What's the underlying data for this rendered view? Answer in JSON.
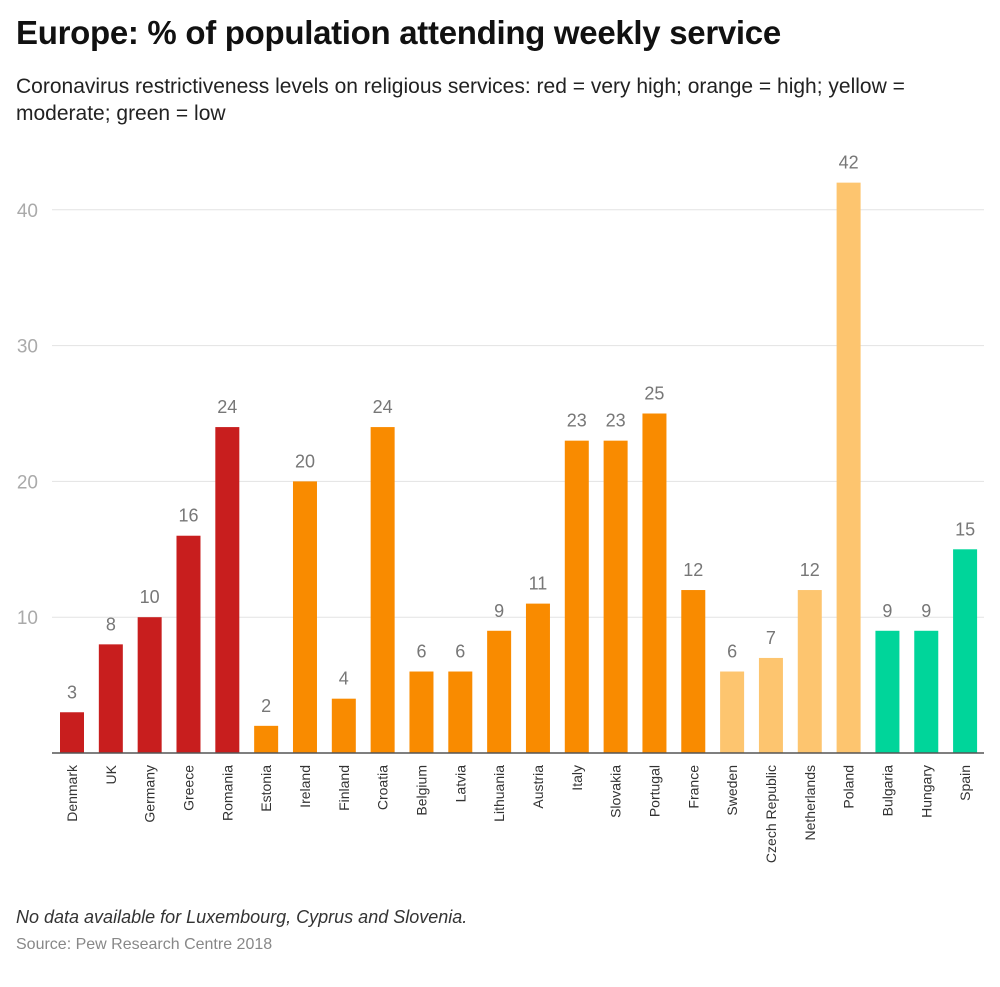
{
  "chart_data": {
    "type": "bar",
    "title": "Europe: % of population attending weekly service",
    "subtitle": "Coronavirus restrictiveness levels on religious services: red = very high; orange = high; yellow = moderate; green = low",
    "categories": [
      "Denmark",
      "UK",
      "Germany",
      "Greece",
      "Romania",
      "Estonia",
      "Ireland",
      "Finland",
      "Croatia",
      "Belgium",
      "Latvia",
      "Lithuania",
      "Austria",
      "Italy",
      "Slovakia",
      "Portugal",
      "France",
      "Sweden",
      "Czech Republic",
      "Netherlands",
      "Poland",
      "Bulgaria",
      "Hungary",
      "Spain"
    ],
    "values": [
      3,
      8,
      10,
      16,
      24,
      2,
      20,
      4,
      24,
      6,
      6,
      9,
      11,
      23,
      23,
      25,
      12,
      6,
      7,
      12,
      42,
      9,
      9,
      15
    ],
    "levels": [
      "very high",
      "very high",
      "very high",
      "very high",
      "very high",
      "high",
      "high",
      "high",
      "high",
      "high",
      "high",
      "high",
      "high",
      "high",
      "high",
      "high",
      "high",
      "moderate",
      "moderate",
      "moderate",
      "moderate",
      "low",
      "low",
      "low"
    ],
    "level_colors": {
      "very high": "#c81e1e",
      "high": "#f98b00",
      "moderate": "#fdc56f",
      "low": "#00d59a"
    },
    "yticks": [
      10,
      20,
      30,
      40
    ],
    "ylim": [
      0,
      44
    ],
    "grid": true,
    "xlabel": "",
    "ylabel": ""
  },
  "footer": {
    "note": "No data available for Luxembourg, Cyprus and Slovenia.",
    "source": "Source: Pew Research Centre 2018"
  }
}
